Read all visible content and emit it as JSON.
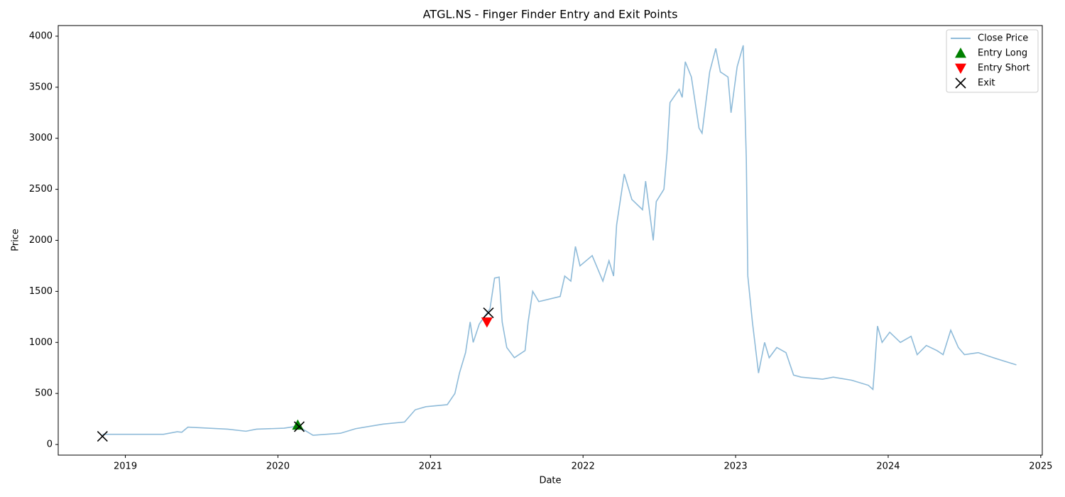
{
  "chart_data": {
    "type": "line",
    "title": "ATGL.NS - Finger Finder Entry and Exit Points",
    "x_label": "Date",
    "y_label": "Price",
    "xlim": [
      2018.56,
      2025.01
    ],
    "ylim": [
      -104,
      4104
    ],
    "xticks": [
      2019,
      2020,
      2021,
      2022,
      2023,
      2024,
      2025
    ],
    "yticks": [
      0,
      500,
      1000,
      1500,
      2000,
      2500,
      3000,
      3500,
      4000
    ],
    "grid": false,
    "legend": "upper right",
    "series": [
      {
        "name": "Close Price",
        "type": "line",
        "color": "#8fbbd9",
        "x": [
          2018.85,
          2019.11,
          2019.25,
          2019.34,
          2019.37,
          2019.41,
          2019.67,
          2019.79,
          2019.86,
          2020.04,
          2020.13,
          2020.23,
          2020.41,
          2020.51,
          2020.69,
          2020.83,
          2020.9,
          2020.97,
          2021.11,
          2021.16,
          2021.19,
          2021.23,
          2021.26,
          2021.28,
          2021.32,
          2021.39,
          2021.42,
          2021.45,
          2021.47,
          2021.5,
          2021.55,
          2021.62,
          2021.64,
          2021.67,
          2021.71,
          2021.85,
          2021.88,
          2021.92,
          2021.95,
          2021.98,
          2022.06,
          2022.13,
          2022.17,
          2022.2,
          2022.22,
          2022.27,
          2022.32,
          2022.39,
          2022.41,
          2022.46,
          2022.48,
          2022.53,
          2022.55,
          2022.57,
          2022.63,
          2022.65,
          2022.67,
          2022.71,
          2022.76,
          2022.78,
          2022.83,
          2022.87,
          2022.9,
          2022.95,
          2022.97,
          2023.01,
          2023.05,
          2023.07,
          2023.08,
          2023.11,
          2023.15,
          2023.19,
          2023.22,
          2023.27,
          2023.33,
          2023.38,
          2023.43,
          2023.57,
          2023.64,
          2023.76,
          2023.87,
          2023.9,
          2023.91,
          2023.93,
          2023.96,
          2024.01,
          2024.08,
          2024.15,
          2024.19,
          2024.25,
          2024.32,
          2024.36,
          2024.41,
          2024.46,
          2024.5,
          2024.59,
          2024.71,
          2024.84
        ],
        "values": [
          100,
          100,
          100,
          125,
          120,
          170,
          150,
          130,
          150,
          160,
          180,
          90,
          110,
          155,
          200,
          220,
          340,
          370,
          390,
          500,
          700,
          900,
          1200,
          1000,
          1180,
          1330,
          1630,
          1640,
          1200,
          950,
          850,
          920,
          1200,
          1500,
          1400,
          1450,
          1650,
          1600,
          1940,
          1750,
          1850,
          1600,
          1800,
          1650,
          2150,
          2650,
          2400,
          2300,
          2580,
          2000,
          2380,
          2500,
          2850,
          3350,
          3480,
          3400,
          3750,
          3600,
          3100,
          3050,
          3650,
          3880,
          3650,
          3600,
          3250,
          3700,
          3910,
          2800,
          1650,
          1200,
          700,
          1000,
          850,
          950,
          900,
          680,
          660,
          640,
          660,
          630,
          580,
          540,
          730,
          1160,
          1000,
          1100,
          1000,
          1060,
          880,
          970,
          920,
          880,
          1120,
          950,
          880,
          900,
          840,
          780
        ]
      },
      {
        "name": "Entry Long",
        "type": "scatter",
        "marker": "^",
        "color": "#008000",
        "x": [
          2020.13
        ],
        "values": [
          190
        ]
      },
      {
        "name": "Entry Short",
        "type": "scatter",
        "marker": "v",
        "color": "#ff0000",
        "x": [
          2021.37
        ],
        "values": [
          1200
        ]
      },
      {
        "name": "Exit",
        "type": "scatter",
        "marker": "x",
        "color": "#000000",
        "x": [
          2018.85,
          2020.14,
          2021.38
        ],
        "values": [
          80,
          175,
          1290
        ]
      }
    ]
  }
}
